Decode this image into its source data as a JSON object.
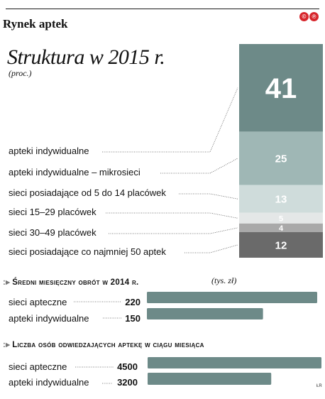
{
  "header": {
    "title": "Rynek aptek",
    "brand_mark": [
      "©",
      "℗"
    ]
  },
  "source_mark": "ŁR",
  "chart_data": [
    {
      "type": "bar",
      "stacked": true,
      "title": "Struktura w 2015 r.",
      "unit": "(proc.)",
      "categories": [
        "apteki indywidualne",
        "apteki indywidualne – mikrosieci",
        "sieci posiadające od 5 do 14 placówek",
        "sieci 15–29 placówek",
        "sieci 30–49 placówek",
        "sieci posiadające co najmniej 50 aptek"
      ],
      "values": [
        41,
        25,
        13,
        5,
        4,
        12
      ],
      "colors": [
        "#6d8a88",
        "#9fb7b5",
        "#cfdcdb",
        "#e4e7e7",
        "#a9a9a9",
        "#6a6a6a"
      ],
      "label_colors": [
        "#ffffff",
        "#ffffff",
        "#ffffff",
        "#ffffff",
        "#ffffff",
        "#ffffff"
      ]
    },
    {
      "type": "bar",
      "orientation": "horizontal",
      "title": "Średni miesięczny obrót w 2014 r.",
      "unit": "(tys. zł)",
      "categories": [
        "sieci apteczne",
        "apteki indywidualne"
      ],
      "values": [
        220,
        150
      ],
      "color": "#6d8a88"
    },
    {
      "type": "bar",
      "orientation": "horizontal",
      "title": "Liczba osób odwiedzających aptekę w ciągu miesiąca",
      "categories": [
        "sieci apteczne",
        "apteki indywidualne"
      ],
      "values": [
        4500,
        3200
      ],
      "color": "#6d8a88"
    }
  ]
}
